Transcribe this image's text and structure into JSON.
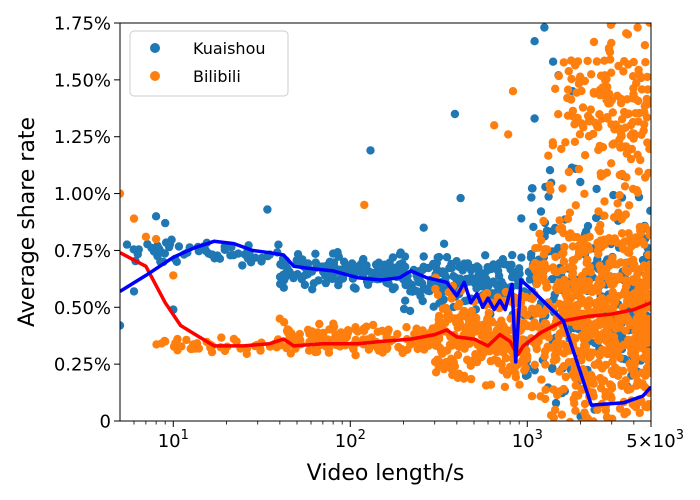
{
  "chart_data": {
    "type": "scatter",
    "xlabel": "Video length/s",
    "ylabel": "Average share rate",
    "x_scale": "log",
    "xlim": [
      5,
      5000
    ],
    "ylim": [
      0,
      1.75
    ],
    "x_ticks": [
      {
        "value": 10,
        "base": "10",
        "exp": "1",
        "mantissa": ""
      },
      {
        "value": 100,
        "base": "10",
        "exp": "2",
        "mantissa": ""
      },
      {
        "value": 1000,
        "base": "10",
        "exp": "3",
        "mantissa": ""
      },
      {
        "value": 5000,
        "base": "10",
        "exp": "3",
        "mantissa": "5×"
      }
    ],
    "y_ticks": [
      {
        "value": 0,
        "label": "0"
      },
      {
        "value": 0.25,
        "label": "0.25%"
      },
      {
        "value": 0.5,
        "label": "0.50%"
      },
      {
        "value": 0.75,
        "label": "0.75%"
      },
      {
        "value": 1.0,
        "label": "1.00%"
      },
      {
        "value": 1.25,
        "label": "1.25%"
      },
      {
        "value": 1.5,
        "label": "1.50%"
      },
      {
        "value": 1.75,
        "label": "1.75%"
      }
    ],
    "legend_position": "top-left",
    "grid": false,
    "series": [
      {
        "name": "Kuaishou",
        "color": "#1f77b4",
        "trend_color": "#0000ff",
        "trend": [
          [
            5,
            0.57
          ],
          [
            7,
            0.64
          ],
          [
            10,
            0.72
          ],
          [
            13,
            0.76
          ],
          [
            17,
            0.79
          ],
          [
            22,
            0.78
          ],
          [
            28,
            0.75
          ],
          [
            35,
            0.74
          ],
          [
            42,
            0.73
          ],
          [
            48,
            0.68
          ],
          [
            60,
            0.67
          ],
          [
            80,
            0.66
          ],
          [
            110,
            0.63
          ],
          [
            150,
            0.62
          ],
          [
            190,
            0.63
          ],
          [
            220,
            0.66
          ],
          [
            270,
            0.63
          ],
          [
            350,
            0.61
          ],
          [
            400,
            0.55
          ],
          [
            440,
            0.61
          ],
          [
            480,
            0.52
          ],
          [
            520,
            0.56
          ],
          [
            560,
            0.5
          ],
          [
            600,
            0.54
          ],
          [
            650,
            0.49
          ],
          [
            700,
            0.53
          ],
          [
            750,
            0.49
          ],
          [
            820,
            0.6
          ],
          [
            860,
            0.26
          ],
          [
            920,
            0.62
          ],
          [
            1050,
            0.58
          ],
          [
            1600,
            0.44
          ],
          [
            2300,
            0.07
          ],
          [
            3500,
            0.08
          ],
          [
            4500,
            0.11
          ],
          [
            5000,
            0.15
          ]
        ],
        "scatter_clusters": [
          {
            "x_from": 5,
            "x_to": 40,
            "y_center": 0.74,
            "y_spread": 0.05,
            "count": 60
          },
          {
            "x_from": 40,
            "x_to": 200,
            "y_center": 0.66,
            "y_spread": 0.07,
            "count": 160
          },
          {
            "x_from": 200,
            "x_to": 900,
            "y_center": 0.62,
            "y_spread": 0.12,
            "count": 180
          },
          {
            "x_from": 900,
            "x_to": 5000,
            "y_center": 0.55,
            "y_spread": 0.45,
            "count": 260
          }
        ],
        "scatter_points": [
          [
            5,
            0.42
          ],
          [
            6,
            0.57
          ],
          [
            8,
            0.9
          ],
          [
            9,
            0.87
          ],
          [
            10,
            0.49
          ],
          [
            12,
            0.74
          ],
          [
            34,
            0.93
          ],
          [
            130,
            1.19
          ],
          [
            390,
            1.35
          ],
          [
            420,
            0.98
          ],
          [
            260,
            0.85
          ],
          [
            1100,
            1.67
          ],
          [
            1250,
            1.73
          ],
          [
            1400,
            1.58
          ],
          [
            1500,
            1.52
          ],
          [
            1800,
            1.45
          ],
          [
            1100,
            1.33
          ],
          [
            2000,
            0.02
          ],
          [
            2400,
            0.05
          ]
        ]
      },
      {
        "name": "Bilibili",
        "color": "#ff7f0e",
        "trend_color": "#ff0000",
        "trend": [
          [
            5,
            0.74
          ],
          [
            7,
            0.68
          ],
          [
            9,
            0.52
          ],
          [
            11,
            0.42
          ],
          [
            14,
            0.37
          ],
          [
            17,
            0.33
          ],
          [
            25,
            0.33
          ],
          [
            35,
            0.34
          ],
          [
            42,
            0.36
          ],
          [
            48,
            0.33
          ],
          [
            70,
            0.34
          ],
          [
            110,
            0.34
          ],
          [
            150,
            0.35
          ],
          [
            220,
            0.36
          ],
          [
            300,
            0.38
          ],
          [
            350,
            0.4
          ],
          [
            400,
            0.37
          ],
          [
            500,
            0.36
          ],
          [
            600,
            0.33
          ],
          [
            700,
            0.38
          ],
          [
            800,
            0.35
          ],
          [
            880,
            0.29
          ],
          [
            950,
            0.33
          ],
          [
            1200,
            0.39
          ],
          [
            1600,
            0.44
          ],
          [
            2200,
            0.46
          ],
          [
            3000,
            0.47
          ],
          [
            4000,
            0.49
          ],
          [
            5000,
            0.52
          ]
        ],
        "scatter_clusters": [
          {
            "x_from": 8,
            "x_to": 40,
            "y_center": 0.33,
            "y_spread": 0.03,
            "count": 40
          },
          {
            "x_from": 40,
            "x_to": 300,
            "y_center": 0.36,
            "y_spread": 0.06,
            "count": 140
          },
          {
            "x_from": 300,
            "x_to": 1000,
            "y_center": 0.38,
            "y_spread": 0.22,
            "count": 260
          },
          {
            "x_from": 1000,
            "x_to": 5000,
            "y_center": 0.45,
            "y_spread": 0.45,
            "count": 700
          },
          {
            "x_from": 1300,
            "x_to": 5000,
            "y_center": 1.35,
            "y_spread": 0.35,
            "count": 180
          }
        ],
        "scatter_points": [
          [
            5,
            1.0
          ],
          [
            6,
            0.89
          ],
          [
            7,
            0.81
          ],
          [
            8,
            0.8
          ],
          [
            10,
            0.64
          ],
          [
            9,
            0.35
          ],
          [
            120,
            0.95
          ],
          [
            40,
            0.45
          ],
          [
            780,
            1.26
          ],
          [
            830,
            1.45
          ],
          [
            650,
            1.3
          ],
          [
            3000,
            1.75
          ],
          [
            4200,
            1.73
          ],
          [
            3700,
            1.7
          ]
        ]
      }
    ]
  }
}
